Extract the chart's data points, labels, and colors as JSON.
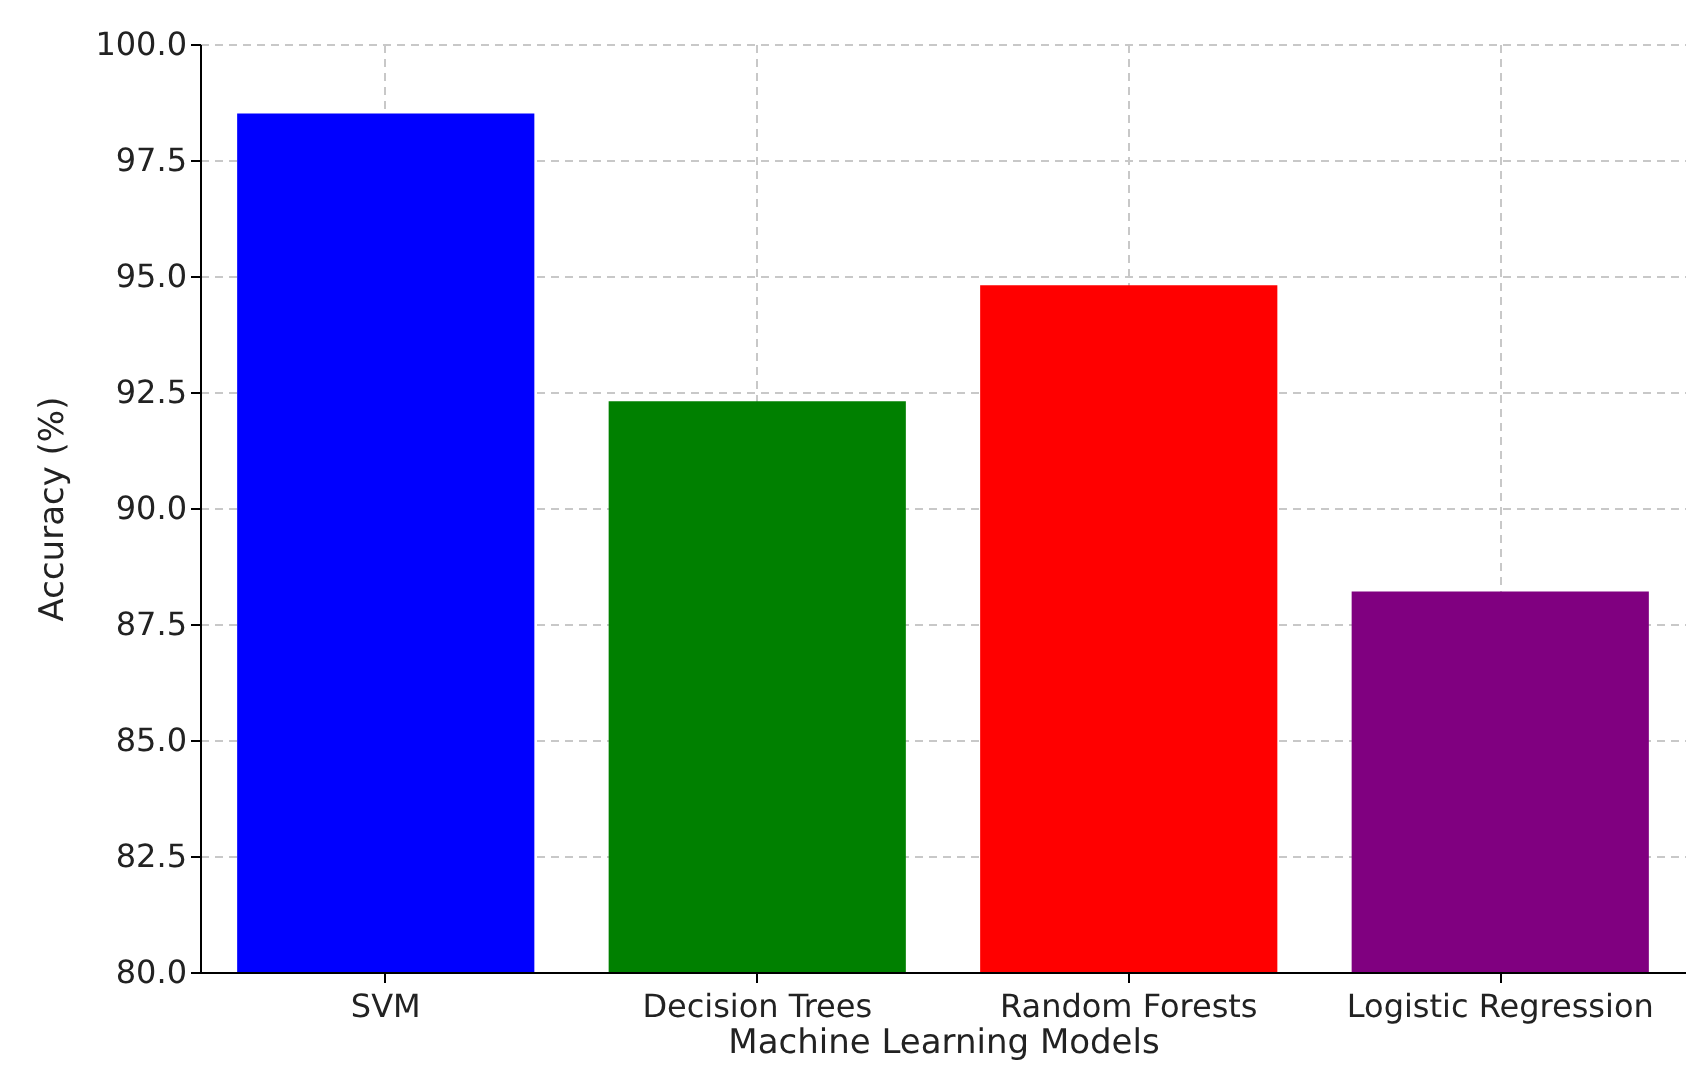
{
  "chart_data": {
    "type": "bar",
    "xlabel": "Machine Learning Models",
    "ylabel": "Accuracy (%)",
    "categories": [
      "SVM",
      "Decision Trees",
      "Random Forests",
      "Logistic Regression"
    ],
    "values": [
      98.5,
      92.3,
      94.8,
      88.2
    ],
    "colors": [
      "#0000ff",
      "#008000",
      "#ff0000",
      "#800080"
    ],
    "ylim": [
      80,
      100
    ],
    "yticks": [
      {
        "value": 80,
        "label": "80.0"
      },
      82.5,
      {
        "value": 85,
        "label": "85.0"
      },
      87.5,
      {
        "value": 90,
        "label": "90.0"
      },
      92.5,
      {
        "value": 95,
        "label": "95.0"
      },
      97.5,
      {
        "value": 100,
        "label": "100.0"
      }
    ],
    "grid": true
  }
}
